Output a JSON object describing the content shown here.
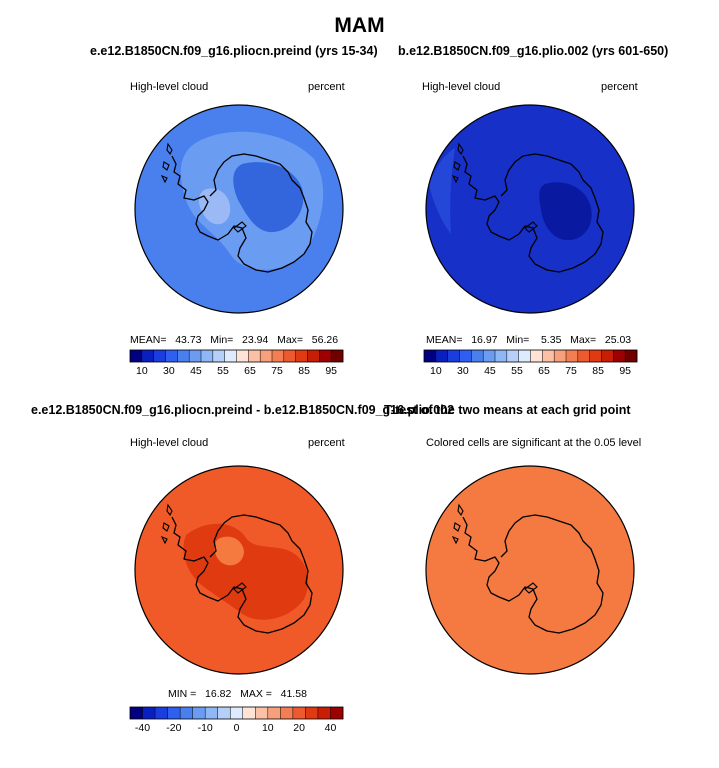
{
  "figure": {
    "title": "MAM"
  },
  "panels": [
    {
      "title": "e.e12.B1850CN.f09_g16.pliocn.preind (yrs 15-34)",
      "left_label": "High-level cloud",
      "right_label": "percent",
      "stats": "MEAN=   43.73   Min=   23.94   Max=   56.26",
      "base_color": "#4a80ee",
      "patches": [
        {
          "color": "#6a9cf2",
          "value_band": "45-55"
        },
        {
          "color": "#3366dd",
          "value_band": "35-40"
        },
        {
          "color": "#9ab9f5",
          "value_band": "50-55"
        }
      ]
    },
    {
      "title": "b.e12.B1850CN.f09_g16.plio.002 (yrs 601-650)",
      "left_label": "High-level cloud",
      "right_label": "percent",
      "stats": "MEAN=   16.97   Min=    5.35   Max=   25.03",
      "base_color": "#1630c8",
      "patches": [
        {
          "color": "#0a1aa0",
          "value_band": "5-10"
        },
        {
          "color": "#2447d8",
          "value_band": "20-25"
        }
      ]
    },
    {
      "title": "e.e12.B1850CN.f09_g16.pliocn.preind - b.e12.B1850CN.f09_g16.plio.002",
      "left_label": "High-level cloud",
      "right_label": "percent",
      "stats": "MIN =   16.82   MAX =   41.58",
      "base_color": "#f05a28",
      "patches": [
        {
          "color": "#e03a10",
          "value_band": "30-40"
        },
        {
          "color": "#f47a40",
          "value_band": "15-20"
        }
      ]
    },
    {
      "title": "T-test of the two means at each grid point",
      "left_label": "Colored cells are significant at the 0.05 level",
      "base_color": "#f47a42"
    }
  ],
  "colorbars": {
    "absolute": {
      "tick_labels": [
        "10",
        "30",
        "45",
        "55",
        "65",
        "75",
        "85",
        "95"
      ],
      "colors": [
        "#000080",
        "#0a1fc0",
        "#1a3de0",
        "#2f5ff0",
        "#4a80ee",
        "#6b9cf2",
        "#8fb6f5",
        "#b5cff8",
        "#deebff",
        "#ffe3d6",
        "#fbc1a6",
        "#f8a07c",
        "#f47e54",
        "#ee5a30",
        "#e03a12",
        "#c81e05",
        "#9c0000",
        "#700000"
      ]
    },
    "difference": {
      "tick_labels": [
        "-40",
        "-20",
        "-10",
        "0",
        "10",
        "20",
        "40"
      ],
      "colors": [
        "#000080",
        "#0a1fc0",
        "#1a3de0",
        "#2f5ff0",
        "#4a80ee",
        "#6b9cf2",
        "#8fb6f5",
        "#b5cff8",
        "#deebff",
        "#ffe3d6",
        "#fbc1a6",
        "#f8a07c",
        "#f47e54",
        "#ee5a30",
        "#e03a12",
        "#c81e05",
        "#9c0000"
      ]
    }
  }
}
